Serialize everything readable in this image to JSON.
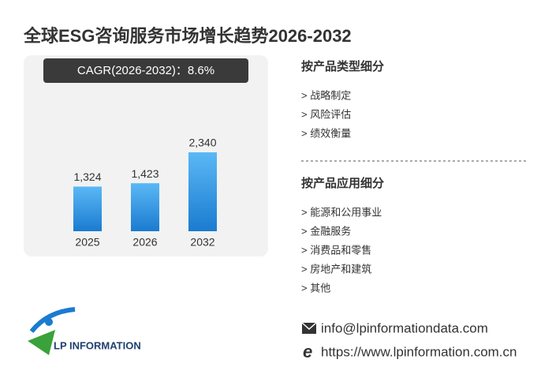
{
  "chart_data": {
    "type": "bar",
    "title": "全球ESG咨询服务市场增长趋势2026-2032",
    "annotation": "CAGR(2026-2032)：8.6%",
    "categories": [
      "2025",
      "2026",
      "2032"
    ],
    "values": [
      1324,
      1423,
      2340
    ],
    "value_labels": [
      "1,324",
      "1,423",
      "2,340"
    ],
    "color": "#1a7bd0"
  },
  "segments": [
    {
      "title": "按产品类型细分",
      "items": [
        "> 战略制定",
        "> 风险评估",
        "> 绩效衡量"
      ]
    },
    {
      "title": "按产品应用细分",
      "items": [
        "> 能源和公用事业",
        "> 金融服务",
        "> 消费品和零售",
        "> 房地产和建筑",
        "> 其他"
      ]
    }
  ],
  "contact": {
    "email": "info@lpinformationdata.com",
    "website": "https://www.lpinformation.com.cn"
  },
  "logo": "LP INFORMATION"
}
